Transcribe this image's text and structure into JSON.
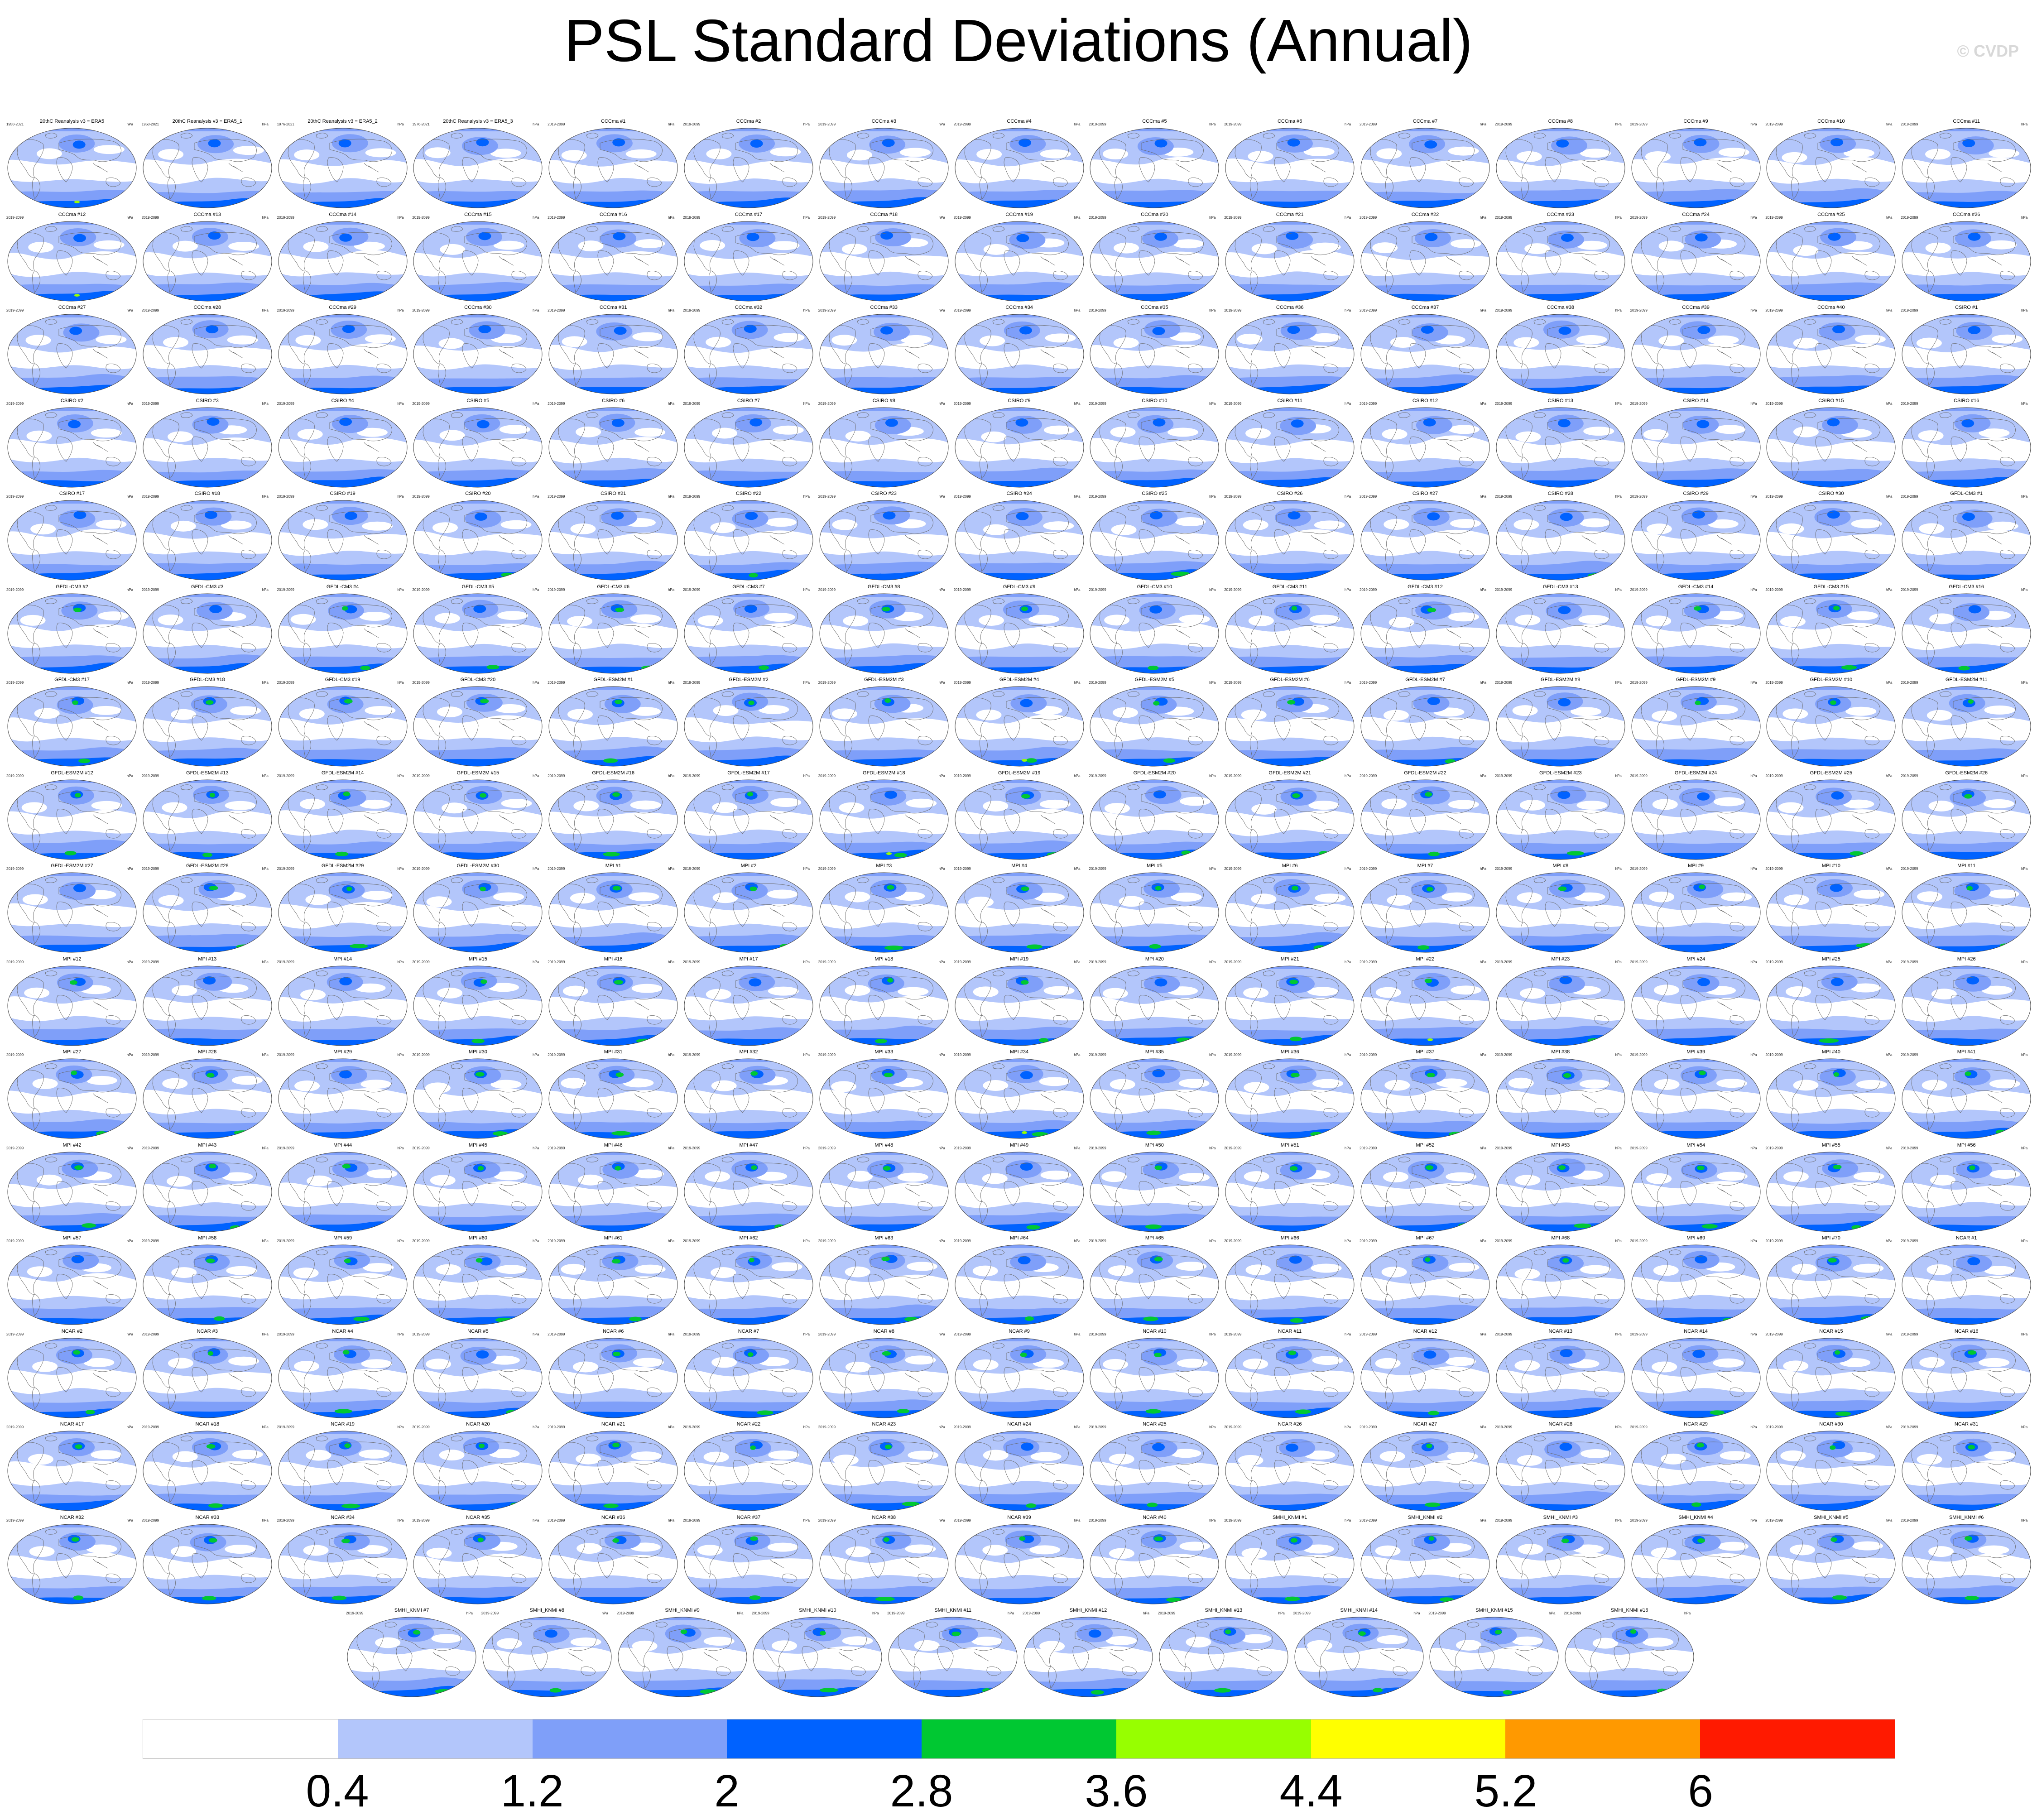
{
  "title": "PSL Standard Deviations (Annual)",
  "copyright": "© CVDP",
  "units": "hPa",
  "colors": {
    "background": "#ffffff",
    "land_outline": "#666666",
    "levels": [
      "#ffffff",
      "#b3c6fb",
      "#7f9ff9",
      "#0062ff",
      "#00c832",
      "#97ff00",
      "#ffff00",
      "#ff9900",
      "#ff1a00"
    ]
  },
  "colorbar": {
    "labels": [
      "0.4",
      "1.2",
      "2",
      "2.8",
      "3.6",
      "4.4",
      "5.2",
      "6"
    ]
  },
  "panels": [
    {
      "title": "20thC Reanalysis v3 ≡ ERA5",
      "years": "1950-2021"
    },
    {
      "title": "20thC Reanalysis v3 ≡ ERA5_1",
      "years": "1950-2021"
    },
    {
      "title": "20thC Reanalysis v3 ≡ ERA5_2",
      "years": "1976-2021"
    },
    {
      "title": "20thC Reanalysis v3 ≡ ERA5_3",
      "years": "1976-2021"
    },
    {
      "title": "CCCma #1",
      "years": "2019-2099"
    },
    {
      "title": "CCCma #2",
      "years": "2019-2099"
    },
    {
      "title": "CCCma #3",
      "years": "2019-2099"
    },
    {
      "title": "CCCma #4",
      "years": "2019-2099"
    },
    {
      "title": "CCCma #5",
      "years": "2019-2099"
    },
    {
      "title": "CCCma #6",
      "years": "2019-2099"
    },
    {
      "title": "CCCma #7",
      "years": "2019-2099"
    },
    {
      "title": "CCCma #8",
      "years": "2019-2099"
    },
    {
      "title": "CCCma #9",
      "years": "2019-2099"
    },
    {
      "title": "CCCma #10",
      "years": "2019-2099"
    },
    {
      "title": "CCCma #11",
      "years": "2019-2099"
    },
    {
      "title": "CCCma #12",
      "years": "2019-2099"
    },
    {
      "title": "CCCma #13",
      "years": "2019-2099"
    },
    {
      "title": "CCCma #14",
      "years": "2019-2099"
    },
    {
      "title": "CCCma #15",
      "years": "2019-2099"
    },
    {
      "title": "CCCma #16",
      "years": "2019-2099"
    },
    {
      "title": "CCCma #17",
      "years": "2019-2099"
    },
    {
      "title": "CCCma #18",
      "years": "2019-2099"
    },
    {
      "title": "CCCma #19",
      "years": "2019-2099"
    },
    {
      "title": "CCCma #20",
      "years": "2019-2099"
    },
    {
      "title": "CCCma #21",
      "years": "2019-2099"
    },
    {
      "title": "CCCma #22",
      "years": "2019-2099"
    },
    {
      "title": "CCCma #23",
      "years": "2019-2099"
    },
    {
      "title": "CCCma #24",
      "years": "2019-2099"
    },
    {
      "title": "CCCma #25",
      "years": "2019-2099"
    },
    {
      "title": "CCCma #26",
      "years": "2019-2099"
    },
    {
      "title": "CCCma #27",
      "years": "2019-2099"
    },
    {
      "title": "CCCma #28",
      "years": "2019-2099"
    },
    {
      "title": "CCCma #29",
      "years": "2019-2099"
    },
    {
      "title": "CCCma #30",
      "years": "2019-2099"
    },
    {
      "title": "CCCma #31",
      "years": "2019-2099"
    },
    {
      "title": "CCCma #32",
      "years": "2019-2099"
    },
    {
      "title": "CCCma #33",
      "years": "2019-2099"
    },
    {
      "title": "CCCma #34",
      "years": "2019-2099"
    },
    {
      "title": "CCCma #35",
      "years": "2019-2099"
    },
    {
      "title": "CCCma #36",
      "years": "2019-2099"
    },
    {
      "title": "CCCma #37",
      "years": "2019-2099"
    },
    {
      "title": "CCCma #38",
      "years": "2019-2099"
    },
    {
      "title": "CCCma #39",
      "years": "2019-2099"
    },
    {
      "title": "CCCma #40",
      "years": "2019-2099"
    },
    {
      "title": "CSIRO #1",
      "years": "2019-2099"
    },
    {
      "title": "CSIRO #2",
      "years": "2019-2099"
    },
    {
      "title": "CSIRO #3",
      "years": "2019-2099"
    },
    {
      "title": "CSIRO #4",
      "years": "2019-2099"
    },
    {
      "title": "CSIRO #5",
      "years": "2019-2099"
    },
    {
      "title": "CSIRO #6",
      "years": "2019-2099"
    },
    {
      "title": "CSIRO #7",
      "years": "2019-2099"
    },
    {
      "title": "CSIRO #8",
      "years": "2019-2099"
    },
    {
      "title": "CSIRO #9",
      "years": "2019-2099"
    },
    {
      "title": "CSIRO #10",
      "years": "2019-2099"
    },
    {
      "title": "CSIRO #11",
      "years": "2019-2099"
    },
    {
      "title": "CSIRO #12",
      "years": "2019-2099"
    },
    {
      "title": "CSIRO #13",
      "years": "2019-2099"
    },
    {
      "title": "CSIRO #14",
      "years": "2019-2099"
    },
    {
      "title": "CSIRO #15",
      "years": "2019-2099"
    },
    {
      "title": "CSIRO #16",
      "years": "2019-2099"
    },
    {
      "title": "CSIRO #17",
      "years": "2019-2099"
    },
    {
      "title": "CSIRO #18",
      "years": "2019-2099"
    },
    {
      "title": "CSIRO #19",
      "years": "2019-2099"
    },
    {
      "title": "CSIRO #20",
      "years": "2019-2099"
    },
    {
      "title": "CSIRO #21",
      "years": "2019-2099"
    },
    {
      "title": "CSIRO #22",
      "years": "2019-2099"
    },
    {
      "title": "CSIRO #23",
      "years": "2019-2099"
    },
    {
      "title": "CSIRO #24",
      "years": "2019-2099"
    },
    {
      "title": "CSIRO #25",
      "years": "2019-2099"
    },
    {
      "title": "CSIRO #26",
      "years": "2019-2099"
    },
    {
      "title": "CSIRO #27",
      "years": "2019-2099"
    },
    {
      "title": "CSIRO #28",
      "years": "2019-2099"
    },
    {
      "title": "CSIRO #29",
      "years": "2019-2099"
    },
    {
      "title": "CSIRO #30",
      "years": "2019-2099"
    },
    {
      "title": "GFDL-CM3 #1",
      "years": "2019-2099"
    },
    {
      "title": "GFDL-CM3 #2",
      "years": "2019-2099"
    },
    {
      "title": "GFDL-CM3 #3",
      "years": "2019-2099"
    },
    {
      "title": "GFDL-CM3 #4",
      "years": "2019-2099"
    },
    {
      "title": "GFDL-CM3 #5",
      "years": "2019-2099"
    },
    {
      "title": "GFDL-CM3 #6",
      "years": "2019-2099"
    },
    {
      "title": "GFDL-CM3 #7",
      "years": "2019-2099"
    },
    {
      "title": "GFDL-CM3 #8",
      "years": "2019-2099"
    },
    {
      "title": "GFDL-CM3 #9",
      "years": "2019-2099"
    },
    {
      "title": "GFDL-CM3 #10",
      "years": "2019-2099"
    },
    {
      "title": "GFDL-CM3 #11",
      "years": "2019-2099"
    },
    {
      "title": "GFDL-CM3 #12",
      "years": "2019-2099"
    },
    {
      "title": "GFDL-CM3 #13",
      "years": "2019-2099"
    },
    {
      "title": "GFDL-CM3 #14",
      "years": "2019-2099"
    },
    {
      "title": "GFDL-CM3 #15",
      "years": "2019-2099"
    },
    {
      "title": "GFDL-CM3 #16",
      "years": "2019-2099"
    },
    {
      "title": "GFDL-CM3 #17",
      "years": "2019-2099"
    },
    {
      "title": "GFDL-CM3 #18",
      "years": "2019-2099"
    },
    {
      "title": "GFDL-CM3 #19",
      "years": "2019-2099"
    },
    {
      "title": "GFDL-CM3 #20",
      "years": "2019-2099"
    },
    {
      "title": "GFDL-ESM2M #1",
      "years": "2019-2099"
    },
    {
      "title": "GFDL-ESM2M #2",
      "years": "2019-2099"
    },
    {
      "title": "GFDL-ESM2M #3",
      "years": "2019-2099"
    },
    {
      "title": "GFDL-ESM2M #4",
      "years": "2019-2099"
    },
    {
      "title": "GFDL-ESM2M #5",
      "years": "2019-2099"
    },
    {
      "title": "GFDL-ESM2M #6",
      "years": "2019-2099"
    },
    {
      "title": "GFDL-ESM2M #7",
      "years": "2019-2099"
    },
    {
      "title": "GFDL-ESM2M #8",
      "years": "2019-2099"
    },
    {
      "title": "GFDL-ESM2M #9",
      "years": "2019-2099"
    },
    {
      "title": "GFDL-ESM2M #10",
      "years": "2019-2099"
    },
    {
      "title": "GFDL-ESM2M #11",
      "years": "2019-2099"
    },
    {
      "title": "GFDL-ESM2M #12",
      "years": "2019-2099"
    },
    {
      "title": "GFDL-ESM2M #13",
      "years": "2019-2099"
    },
    {
      "title": "GFDL-ESM2M #14",
      "years": "2019-2099"
    },
    {
      "title": "GFDL-ESM2M #15",
      "years": "2019-2099"
    },
    {
      "title": "GFDL-ESM2M #16",
      "years": "2019-2099"
    },
    {
      "title": "GFDL-ESM2M #17",
      "years": "2019-2099"
    },
    {
      "title": "GFDL-ESM2M #18",
      "years": "2019-2099"
    },
    {
      "title": "GFDL-ESM2M #19",
      "years": "2019-2099"
    },
    {
      "title": "GFDL-ESM2M #20",
      "years": "2019-2099"
    },
    {
      "title": "GFDL-ESM2M #21",
      "years": "2019-2099"
    },
    {
      "title": "GFDL-ESM2M #22",
      "years": "2019-2099"
    },
    {
      "title": "GFDL-ESM2M #23",
      "years": "2019-2099"
    },
    {
      "title": "GFDL-ESM2M #24",
      "years": "2019-2099"
    },
    {
      "title": "GFDL-ESM2M #25",
      "years": "2019-2099"
    },
    {
      "title": "GFDL-ESM2M #26",
      "years": "2019-2099"
    },
    {
      "title": "GFDL-ESM2M #27",
      "years": "2019-2099"
    },
    {
      "title": "GFDL-ESM2M #28",
      "years": "2019-2099"
    },
    {
      "title": "GFDL-ESM2M #29",
      "years": "2019-2099"
    },
    {
      "title": "GFDL-ESM2M #30",
      "years": "2019-2099"
    },
    {
      "title": "MPI #1",
      "years": "2019-2099"
    },
    {
      "title": "MPI #2",
      "years": "2019-2099"
    },
    {
      "title": "MPI #3",
      "years": "2019-2099"
    },
    {
      "title": "MPI #4",
      "years": "2019-2099"
    },
    {
      "title": "MPI #5",
      "years": "2019-2099"
    },
    {
      "title": "MPI #6",
      "years": "2019-2099"
    },
    {
      "title": "MPI #7",
      "years": "2019-2099"
    },
    {
      "title": "MPI #8",
      "years": "2019-2099"
    },
    {
      "title": "MPI #9",
      "years": "2019-2099"
    },
    {
      "title": "MPI #10",
      "years": "2019-2099"
    },
    {
      "title": "MPI #11",
      "years": "2019-2099"
    },
    {
      "title": "MPI #12",
      "years": "2019-2099"
    },
    {
      "title": "MPI #13",
      "years": "2019-2099"
    },
    {
      "title": "MPI #14",
      "years": "2019-2099"
    },
    {
      "title": "MPI #15",
      "years": "2019-2099"
    },
    {
      "title": "MPI #16",
      "years": "2019-2099"
    },
    {
      "title": "MPI #17",
      "years": "2019-2099"
    },
    {
      "title": "MPI #18",
      "years": "2019-2099"
    },
    {
      "title": "MPI #19",
      "years": "2019-2099"
    },
    {
      "title": "MPI #20",
      "years": "2019-2099"
    },
    {
      "title": "MPI #21",
      "years": "2019-2099"
    },
    {
      "title": "MPI #22",
      "years": "2019-2099"
    },
    {
      "title": "MPI #23",
      "years": "2019-2099"
    },
    {
      "title": "MPI #24",
      "years": "2019-2099"
    },
    {
      "title": "MPI #25",
      "years": "2019-2099"
    },
    {
      "title": "MPI #26",
      "years": "2019-2099"
    },
    {
      "title": "MPI #27",
      "years": "2019-2099"
    },
    {
      "title": "MPI #28",
      "years": "2019-2099"
    },
    {
      "title": "MPI #29",
      "years": "2019-2099"
    },
    {
      "title": "MPI #30",
      "years": "2019-2099"
    },
    {
      "title": "MPI #31",
      "years": "2019-2099"
    },
    {
      "title": "MPI #32",
      "years": "2019-2099"
    },
    {
      "title": "MPI #33",
      "years": "2019-2099"
    },
    {
      "title": "MPI #34",
      "years": "2019-2099"
    },
    {
      "title": "MPI #35",
      "years": "2019-2099"
    },
    {
      "title": "MPI #36",
      "years": "2019-2099"
    },
    {
      "title": "MPI #37",
      "years": "2019-2099"
    },
    {
      "title": "MPI #38",
      "years": "2019-2099"
    },
    {
      "title": "MPI #39",
      "years": "2019-2099"
    },
    {
      "title": "MPI #40",
      "years": "2019-2099"
    },
    {
      "title": "MPI #41",
      "years": "2019-2099"
    },
    {
      "title": "MPI #42",
      "years": "2019-2099"
    },
    {
      "title": "MPI #43",
      "years": "2019-2099"
    },
    {
      "title": "MPI #44",
      "years": "2019-2099"
    },
    {
      "title": "MPI #45",
      "years": "2019-2099"
    },
    {
      "title": "MPI #46",
      "years": "2019-2099"
    },
    {
      "title": "MPI #47",
      "years": "2019-2099"
    },
    {
      "title": "MPI #48",
      "years": "2019-2099"
    },
    {
      "title": "MPI #49",
      "years": "2019-2099"
    },
    {
      "title": "MPI #50",
      "years": "2019-2099"
    },
    {
      "title": "MPI #51",
      "years": "2019-2099"
    },
    {
      "title": "MPI #52",
      "years": "2019-2099"
    },
    {
      "title": "MPI #53",
      "years": "2019-2099"
    },
    {
      "title": "MPI #54",
      "years": "2019-2099"
    },
    {
      "title": "MPI #55",
      "years": "2019-2099"
    },
    {
      "title": "MPI #56",
      "years": "2019-2099"
    },
    {
      "title": "MPI #57",
      "years": "2019-2099"
    },
    {
      "title": "MPI #58",
      "years": "2019-2099"
    },
    {
      "title": "MPI #59",
      "years": "2019-2099"
    },
    {
      "title": "MPI #60",
      "years": "2019-2099"
    },
    {
      "title": "MPI #61",
      "years": "2019-2099"
    },
    {
      "title": "MPI #62",
      "years": "2019-2099"
    },
    {
      "title": "MPI #63",
      "years": "2019-2099"
    },
    {
      "title": "MPI #64",
      "years": "2019-2099"
    },
    {
      "title": "MPI #65",
      "years": "2019-2099"
    },
    {
      "title": "MPI #66",
      "years": "2019-2099"
    },
    {
      "title": "MPI #67",
      "years": "2019-2099"
    },
    {
      "title": "MPI #68",
      "years": "2019-2099"
    },
    {
      "title": "MPI #69",
      "years": "2019-2099"
    },
    {
      "title": "MPI #70",
      "years": "2019-2099"
    },
    {
      "title": "NCAR #1",
      "years": "2019-2099"
    },
    {
      "title": "NCAR #2",
      "years": "2019-2099"
    },
    {
      "title": "NCAR #3",
      "years": "2019-2099"
    },
    {
      "title": "NCAR #4",
      "years": "2019-2099"
    },
    {
      "title": "NCAR #5",
      "years": "2019-2099"
    },
    {
      "title": "NCAR #6",
      "years": "2019-2099"
    },
    {
      "title": "NCAR #7",
      "years": "2019-2099"
    },
    {
      "title": "NCAR #8",
      "years": "2019-2099"
    },
    {
      "title": "NCAR #9",
      "years": "2019-2099"
    },
    {
      "title": "NCAR #10",
      "years": "2019-2099"
    },
    {
      "title": "NCAR #11",
      "years": "2019-2099"
    },
    {
      "title": "NCAR #12",
      "years": "2019-2099"
    },
    {
      "title": "NCAR #13",
      "years": "2019-2099"
    },
    {
      "title": "NCAR #14",
      "years": "2019-2099"
    },
    {
      "title": "NCAR #15",
      "years": "2019-2099"
    },
    {
      "title": "NCAR #16",
      "years": "2019-2099"
    },
    {
      "title": "NCAR #17",
      "years": "2019-2099"
    },
    {
      "title": "NCAR #18",
      "years": "2019-2099"
    },
    {
      "title": "NCAR #19",
      "years": "2019-2099"
    },
    {
      "title": "NCAR #20",
      "years": "2019-2099"
    },
    {
      "title": "NCAR #21",
      "years": "2019-2099"
    },
    {
      "title": "NCAR #22",
      "years": "2019-2099"
    },
    {
      "title": "NCAR #23",
      "years": "2019-2099"
    },
    {
      "title": "NCAR #24",
      "years": "2019-2099"
    },
    {
      "title": "NCAR #25",
      "years": "2019-2099"
    },
    {
      "title": "NCAR #26",
      "years": "2019-2099"
    },
    {
      "title": "NCAR #27",
      "years": "2019-2099"
    },
    {
      "title": "NCAR #28",
      "years": "2019-2099"
    },
    {
      "title": "NCAR #29",
      "years": "2019-2099"
    },
    {
      "title": "NCAR #30",
      "years": "2019-2099"
    },
    {
      "title": "NCAR #31",
      "years": "2019-2099"
    },
    {
      "title": "NCAR #32",
      "years": "2019-2099"
    },
    {
      "title": "NCAR #33",
      "years": "2019-2099"
    },
    {
      "title": "NCAR #34",
      "years": "2019-2099"
    },
    {
      "title": "NCAR #35",
      "years": "2019-2099"
    },
    {
      "title": "NCAR #36",
      "years": "2019-2099"
    },
    {
      "title": "NCAR #37",
      "years": "2019-2099"
    },
    {
      "title": "NCAR #38",
      "years": "2019-2099"
    },
    {
      "title": "NCAR #39",
      "years": "2019-2099"
    },
    {
      "title": "NCAR #40",
      "years": "2019-2099"
    },
    {
      "title": "SMHI_KNMI #1",
      "years": "2019-2099"
    },
    {
      "title": "SMHI_KNMI #2",
      "years": "2019-2099"
    },
    {
      "title": "SMHI_KNMI #3",
      "years": "2019-2099"
    },
    {
      "title": "SMHI_KNMI #4",
      "years": "2019-2099"
    },
    {
      "title": "SMHI_KNMI #5",
      "years": "2019-2099"
    },
    {
      "title": "SMHI_KNMI #6",
      "years": "2019-2099"
    },
    {
      "title": "SMHI_KNMI #7",
      "years": "2019-2099"
    },
    {
      "title": "SMHI_KNMI #8",
      "years": "2019-2099"
    },
    {
      "title": "SMHI_KNMI #9",
      "years": "2019-2099"
    },
    {
      "title": "SMHI_KNMI #10",
      "years": "2019-2099"
    },
    {
      "title": "SMHI_KNMI #11",
      "years": "2019-2099"
    },
    {
      "title": "SMHI_KNMI #12",
      "years": "2019-2099"
    },
    {
      "title": "SMHI_KNMI #13",
      "years": "2019-2099"
    },
    {
      "title": "SMHI_KNMI #14",
      "years": "2019-2099"
    },
    {
      "title": "SMHI_KNMI #15",
      "years": "2019-2099"
    },
    {
      "title": "SMHI_KNMI #16",
      "years": "2019-2099"
    }
  ]
}
